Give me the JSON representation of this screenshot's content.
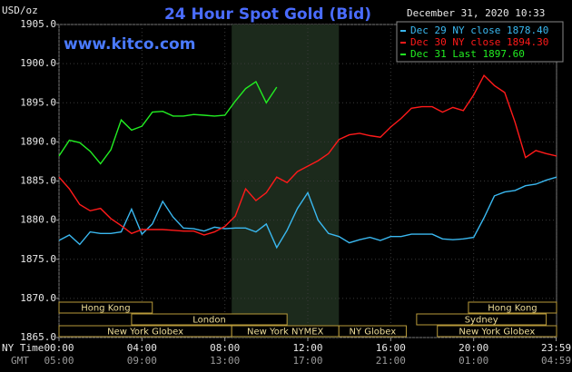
{
  "chart_data": {
    "type": "line",
    "title": "24 Hour Spot Gold (Bid)",
    "site": "www.kitco.com",
    "unit_label": "USD/oz",
    "timestamp": "December 31, 2020 10:33",
    "x_label": "NY Time",
    "gmt_label": "GMT",
    "x": [
      0,
      0.5,
      1,
      1.5,
      2,
      2.5,
      3,
      3.5,
      4,
      4.5,
      5,
      5.5,
      6,
      6.5,
      7,
      7.5,
      8,
      8.5,
      9,
      9.5,
      10,
      10.5,
      11,
      11.5,
      12,
      12.5,
      13,
      13.5,
      14,
      14.5,
      15,
      15.5,
      16,
      16.5,
      17,
      17.5,
      18,
      18.5,
      19,
      19.5,
      20,
      20.5,
      21,
      21.5,
      22,
      22.5,
      23,
      23.5,
      24
    ],
    "xlim": [
      0,
      24
    ],
    "xticks": [
      {
        "value": 0,
        "label": "00:00"
      },
      {
        "value": 4,
        "label": "04:00"
      },
      {
        "value": 8,
        "label": "08:00"
      },
      {
        "value": 12,
        "label": "12:00"
      },
      {
        "value": 16,
        "label": "16:00"
      },
      {
        "value": 20,
        "label": "20:00"
      },
      {
        "value": 23.98,
        "label": "23:59"
      }
    ],
    "gmt_ticks": [
      {
        "value": 0,
        "label": "05:00"
      },
      {
        "value": 4,
        "label": "09:00"
      },
      {
        "value": 8,
        "label": "13:00"
      },
      {
        "value": 12,
        "label": "17:00"
      },
      {
        "value": 16,
        "label": "21:00"
      },
      {
        "value": 20,
        "label": "01:00"
      },
      {
        "value": 23.98,
        "label": "04:59"
      }
    ],
    "ylim": [
      1865,
      1905
    ],
    "yticks": [
      {
        "value": 1865,
        "label": "1865.0"
      },
      {
        "value": 1870,
        "label": "1870.0"
      },
      {
        "value": 1875,
        "label": "1875.0"
      },
      {
        "value": 1880,
        "label": "1880.0"
      },
      {
        "value": 1885,
        "label": "1885.0"
      },
      {
        "value": 1890,
        "label": "1890.0"
      },
      {
        "value": 1895,
        "label": "1895.0"
      },
      {
        "value": 1900,
        "label": "1900.0"
      },
      {
        "value": 1905,
        "label": "1905.0"
      }
    ],
    "grid": true,
    "series": [
      {
        "name": "Dec 29 NY close 1878.40",
        "color": "#3ab8f0",
        "values": [
          1877.4,
          1878.1,
          1876.9,
          1878.5,
          1878.3,
          1878.3,
          1878.5,
          1881.4,
          1878.2,
          1879.5,
          1882.4,
          1880.4,
          1879.0,
          1878.9,
          1878.6,
          1879.1,
          1878.9,
          1879.0,
          1879.0,
          1878.5,
          1879.5,
          1876.5,
          1878.7,
          1881.5,
          1883.5,
          1880.0,
          1878.3,
          1877.9,
          1877.1,
          1877.5,
          1877.8,
          1877.4,
          1877.9,
          1877.9,
          1878.2,
          1878.2,
          1878.2,
          1877.6,
          1877.5,
          1877.6,
          1877.8,
          1880.3,
          1883.1,
          1883.6,
          1883.8,
          1884.4,
          1884.6,
          1885.1,
          1885.5
        ]
      },
      {
        "name": "Dec 30 NY close 1894.30",
        "color": "#ff1a1a",
        "values": [
          1885.5,
          1884.0,
          1882.0,
          1881.2,
          1881.5,
          1880.2,
          1879.3,
          1878.3,
          1878.8,
          1878.8,
          1878.8,
          1878.7,
          1878.6,
          1878.6,
          1878.1,
          1878.5,
          1879.2,
          1880.5,
          1884.0,
          1882.5,
          1883.5,
          1885.5,
          1884.8,
          1886.2,
          1886.9,
          1887.6,
          1888.5,
          1890.3,
          1890.9,
          1891.1,
          1890.8,
          1890.6,
          1891.9,
          1893.0,
          1894.3,
          1894.5,
          1894.5,
          1893.8,
          1894.4,
          1894.0,
          1896.0,
          1898.5,
          1897.2,
          1896.3,
          1892.5,
          1888.0,
          1888.9,
          1888.5,
          1888.2
        ]
      },
      {
        "name": "Dec 31 Last 1897.60",
        "color": "#22ee22",
        "values": [
          1888.2,
          1890.2,
          1889.9,
          1888.8,
          1887.2,
          1889.0,
          1892.8,
          1891.5,
          1892.0,
          1893.8,
          1893.9,
          1893.3,
          1893.3,
          1893.5,
          1893.4,
          1893.3,
          1893.4,
          1895.2,
          1896.8,
          1897.7,
          1895.0,
          1897.0,
          null,
          null,
          null,
          null,
          null,
          null,
          null,
          null,
          null,
          null,
          null,
          null,
          null,
          null,
          null,
          null,
          null,
          null,
          null,
          null,
          null,
          null,
          null,
          null,
          null,
          null,
          null
        ]
      }
    ],
    "sessions": [
      [
        {
          "label": "Hong Kong",
          "start": 0,
          "end": 4.5
        },
        {
          "label": "Hong Kong",
          "start": 19.75,
          "end": 24
        }
      ],
      [
        {
          "label": "London",
          "start": 3.5,
          "end": 11
        },
        {
          "label": "Sydney",
          "start": 17.25,
          "end": 23.5
        }
      ],
      [
        {
          "label": "New York Globex",
          "start": 0,
          "end": 8.33
        },
        {
          "label": "New York NYMEX",
          "start": 8.33,
          "end": 13.5,
          "shaded": true
        },
        {
          "label": "NY Globex",
          "start": 13.5,
          "end": 16.75
        },
        {
          "label": "New York Globex",
          "start": 18.25,
          "end": 24
        }
      ]
    ]
  }
}
